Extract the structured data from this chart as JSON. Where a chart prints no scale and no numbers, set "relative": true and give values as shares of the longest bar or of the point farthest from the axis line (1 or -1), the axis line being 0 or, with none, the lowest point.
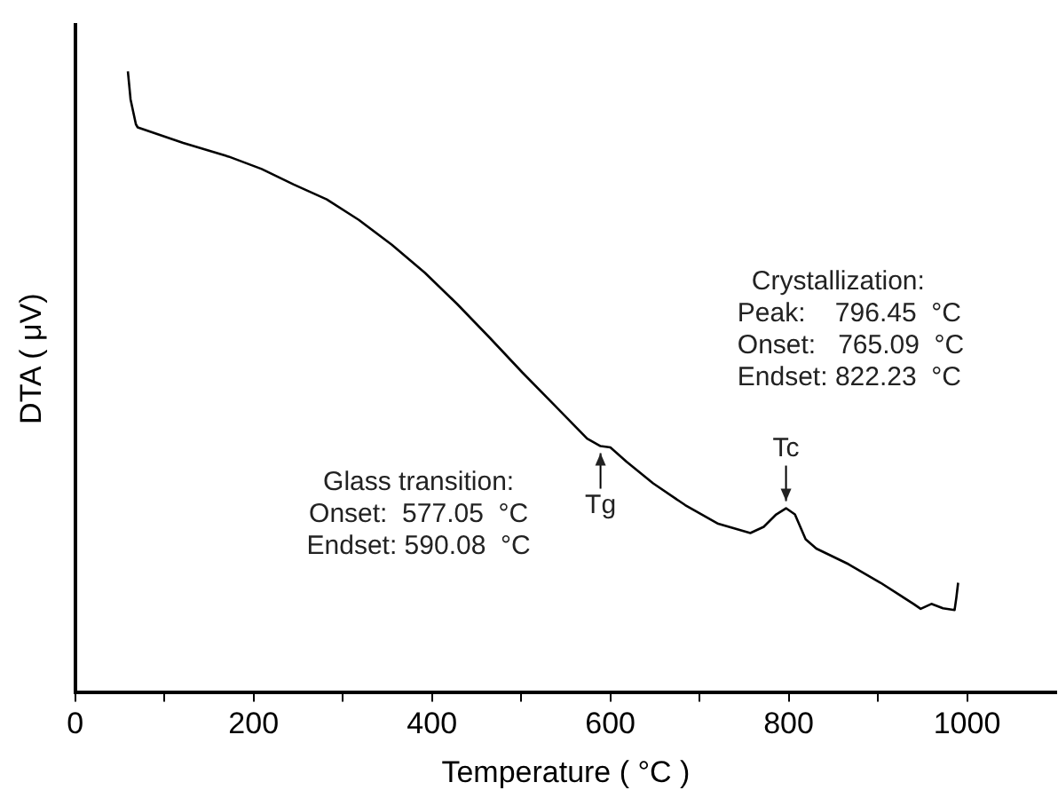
{
  "chart_data": {
    "type": "line",
    "relative": true,
    "xlabel": "Temperature ( °C )",
    "ylabel": "DTA ( μV)",
    "color": "#000000",
    "xlim": [
      0,
      1100
    ],
    "xticks": [
      0,
      {
        "value": 100,
        "label": null
      },
      200,
      {
        "value": 300,
        "label": null
      },
      400,
      {
        "value": 500,
        "label": null
      },
      600,
      {
        "value": 700,
        "label": null
      },
      800,
      {
        "value": 900,
        "label": null
      },
      1000
    ],
    "x": [
      59,
      62,
      68,
      70,
      121,
      172,
      209,
      245,
      282,
      318,
      355,
      392,
      428,
      465,
      501,
      538,
      574,
      589,
      600,
      618,
      648,
      684,
      721,
      757,
      772,
      786,
      797,
      807,
      819,
      831,
      867,
      903,
      940,
      948,
      960,
      973,
      986,
      988,
      990
    ],
    "values": [
      1.0,
      0.955,
      0.915,
      0.91,
      0.885,
      0.863,
      0.843,
      0.818,
      0.794,
      0.761,
      0.721,
      0.676,
      0.626,
      0.571,
      0.516,
      0.462,
      0.409,
      0.397,
      0.395,
      0.372,
      0.337,
      0.302,
      0.272,
      0.257,
      0.267,
      0.287,
      0.297,
      0.287,
      0.247,
      0.232,
      0.207,
      0.177,
      0.143,
      0.135,
      0.143,
      0.136,
      0.133,
      0.153,
      0.177
    ],
    "annotations": [
      {
        "text": "Tg",
        "x": 589,
        "y": 0.397
      },
      {
        "text": "Tc",
        "x": 797,
        "y": 0.297
      },
      "Glass transition:\nOnset:  577.05  °C\nEndset: 590.08  °C",
      "Crystallization:\nPeak:    796.45  °C\nOnset:   765.09  °C\nEndset: 822.23  °C"
    ],
    "legend": false,
    "grid": false,
    "marker": "none",
    "line_style": "solid"
  }
}
